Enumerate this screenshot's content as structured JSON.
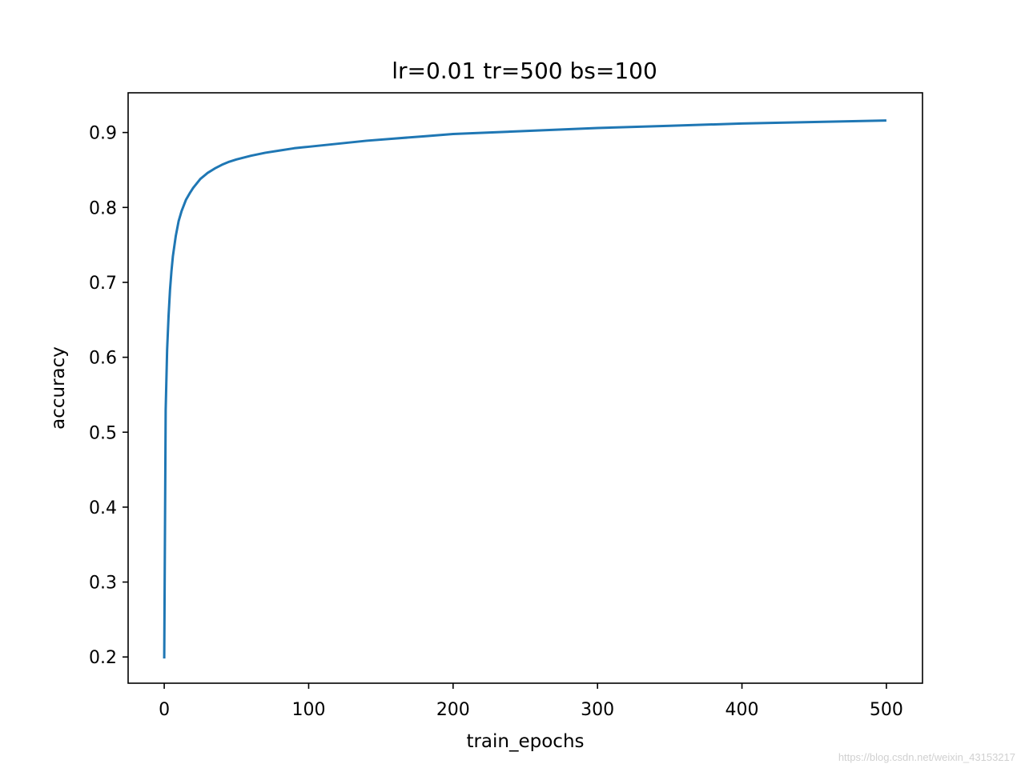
{
  "chart_data": {
    "type": "line",
    "title": "lr=0.01 tr=500 bs=100",
    "xlabel": "train_epochs",
    "ylabel": "accuracy",
    "xlim": [
      -25,
      525
    ],
    "ylim": [
      0.165,
      0.953
    ],
    "xticks": [
      0,
      100,
      200,
      300,
      400,
      500
    ],
    "yticks": [
      0.2,
      0.3,
      0.4,
      0.5,
      0.6,
      0.7,
      0.8,
      0.9
    ],
    "grid": false,
    "color": "#1f77b4",
    "series": [
      {
        "x": [
          0,
          1,
          2,
          3,
          4,
          5,
          6,
          8,
          10,
          12,
          15,
          18,
          20,
          25,
          30,
          35,
          40,
          45,
          50,
          60,
          70,
          80,
          90,
          100,
          120,
          140,
          160,
          180,
          200,
          250,
          300,
          350,
          400,
          450,
          500
        ],
        "values": [
          0.198,
          0.53,
          0.61,
          0.655,
          0.69,
          0.715,
          0.735,
          0.762,
          0.782,
          0.795,
          0.81,
          0.82,
          0.826,
          0.838,
          0.846,
          0.852,
          0.857,
          0.861,
          0.864,
          0.869,
          0.873,
          0.876,
          0.879,
          0.881,
          0.885,
          0.889,
          0.892,
          0.895,
          0.898,
          0.902,
          0.906,
          0.909,
          0.912,
          0.914,
          0.916
        ]
      }
    ]
  },
  "watermark": "https://blog.csdn.net/weixin_43153217"
}
